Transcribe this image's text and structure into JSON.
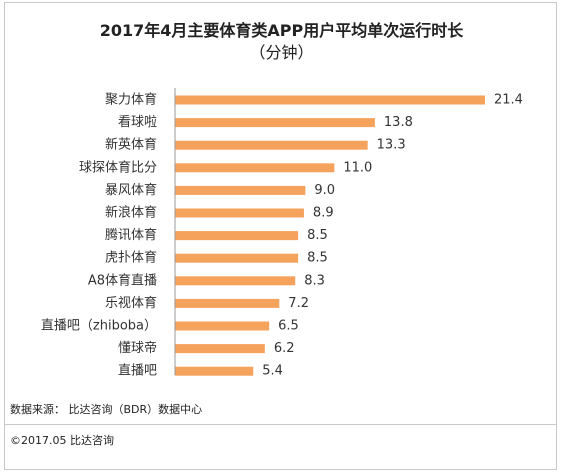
{
  "chart_data": {
    "type": "bar",
    "orientation": "horizontal",
    "title": "2017年4月主要体育类APP用户平均单次运行时长",
    "subtitle": "（分钟）",
    "categories": [
      "聚力体育",
      "看球啦",
      "新英体育",
      "球探体育比分",
      "暴风体育",
      "新浪体育",
      "腾讯体育",
      "虎扑体育",
      "A8体育直播",
      "乐视体育",
      "直播吧（zhiboba）",
      "懂球帝",
      "直播吧"
    ],
    "values": [
      21.4,
      13.8,
      13.3,
      11.0,
      9.0,
      8.9,
      8.5,
      8.5,
      8.3,
      7.2,
      6.5,
      6.2,
      5.4
    ],
    "value_labels": [
      "21.4",
      "13.8",
      "13.3",
      "11.0",
      "9.0",
      "8.9",
      "8.5",
      "8.5",
      "8.3",
      "7.2",
      "6.5",
      "6.2",
      "5.4"
    ],
    "xlim": [
      0,
      21.4
    ],
    "bar_color": "#f5a25d",
    "grid": false,
    "xlabel": "",
    "ylabel": ""
  },
  "source": "数据来源：  比达咨询（BDR）数据中心",
  "copyright": "©2017.05   比达咨询"
}
